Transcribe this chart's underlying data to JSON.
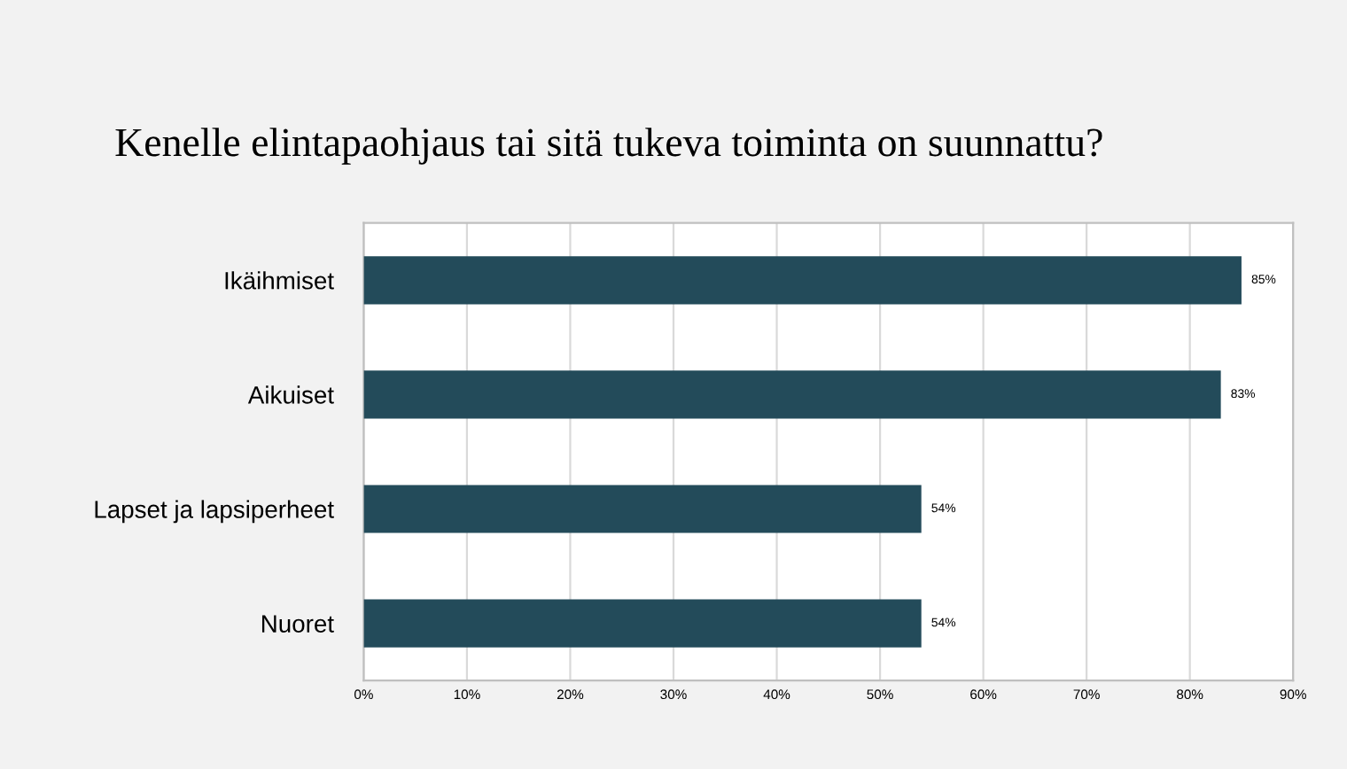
{
  "chart_data": {
    "type": "bar",
    "orientation": "horizontal",
    "title": "Kenelle elintapaohjaus tai sitä tukeva toiminta on suunnattu?",
    "categories": [
      "Ikäihmiset",
      "Aikuiset",
      "Lapset ja lapsiperheet",
      "Nuoret"
    ],
    "values": [
      85,
      83,
      54,
      54
    ],
    "color": "#234b5a",
    "value_labels": [
      "85%",
      "83%",
      "54%",
      "54%"
    ],
    "xlim": [
      0,
      90
    ],
    "xticks": [
      {
        "value": 0,
        "label": "0%"
      },
      {
        "value": 10,
        "label": "10%"
      },
      {
        "value": 20,
        "label": "20%"
      },
      {
        "value": 30,
        "label": "30%"
      },
      {
        "value": 40,
        "label": "40%"
      },
      {
        "value": 50,
        "label": "50%"
      },
      {
        "value": 60,
        "label": "60%"
      },
      {
        "value": 70,
        "label": "70%"
      },
      {
        "value": 80,
        "label": "80%"
      },
      {
        "value": 90,
        "label": "90%"
      }
    ],
    "grid": "x",
    "legend": false
  }
}
